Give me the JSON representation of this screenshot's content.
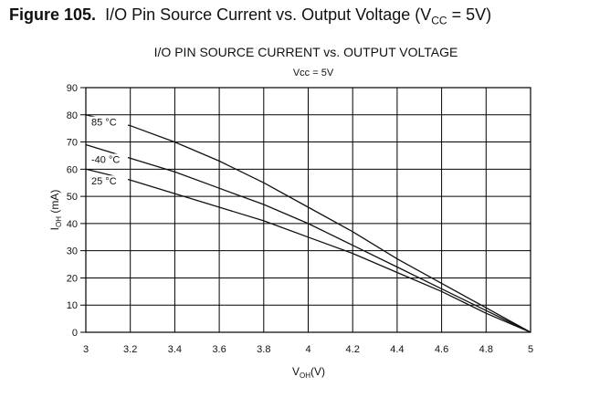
{
  "figure": {
    "number": "Figure 105.",
    "caption_main": "I/O Pin Source Current vs. Output Voltage (V",
    "caption_sub": "CC",
    "caption_end": " = 5V)"
  },
  "chart_data": {
    "type": "line",
    "title": "I/O PIN SOURCE CURRENT vs. OUTPUT VOLTAGE",
    "subtitle": "Vcc = 5V",
    "xlabel_main": "V",
    "xlabel_sub": "OH",
    "xlabel_end": "(V)",
    "ylabel_main": "I",
    "ylabel_sub": "OH",
    "ylabel_end": " (mA)",
    "xlim": [
      3,
      5
    ],
    "ylim": [
      0,
      90
    ],
    "x_ticks": [
      3,
      3.2,
      3.4,
      3.6,
      3.8,
      4,
      4.2,
      4.4,
      4.6,
      4.8,
      5
    ],
    "x_tick_labels": [
      "3",
      "3.2",
      "3.4",
      "3.6",
      "3.8",
      "4",
      "4.2",
      "4.4",
      "4.6",
      "4.8",
      "5"
    ],
    "y_ticks": [
      0,
      10,
      20,
      30,
      40,
      50,
      60,
      70,
      80,
      90
    ],
    "y_tick_labels": [
      "0",
      "10",
      "20",
      "30",
      "40",
      "50",
      "60",
      "70",
      "80",
      "90"
    ],
    "grid": true,
    "series": [
      {
        "name": "85 °C",
        "x": [
          3,
          3.2,
          3.4,
          3.6,
          3.8,
          4,
          4.2,
          4.4,
          4.6,
          4.8,
          5
        ],
        "y": [
          80,
          76,
          70,
          63,
          55,
          46,
          37,
          27,
          18,
          9,
          0
        ]
      },
      {
        "name": "-40 °C",
        "x": [
          3,
          3.2,
          3.4,
          3.6,
          3.8,
          4,
          4.2,
          4.4,
          4.6,
          4.8,
          5
        ],
        "y": [
          69,
          64,
          59,
          53,
          47,
          40,
          32,
          24,
          16,
          8,
          0
        ]
      },
      {
        "name": "25 °C",
        "x": [
          3,
          3.2,
          3.4,
          3.6,
          3.8,
          4,
          4.2,
          4.4,
          4.6,
          4.8,
          5
        ],
        "y": [
          60,
          56,
          51,
          46,
          41,
          35,
          29,
          22,
          15,
          7,
          0
        ]
      }
    ]
  }
}
